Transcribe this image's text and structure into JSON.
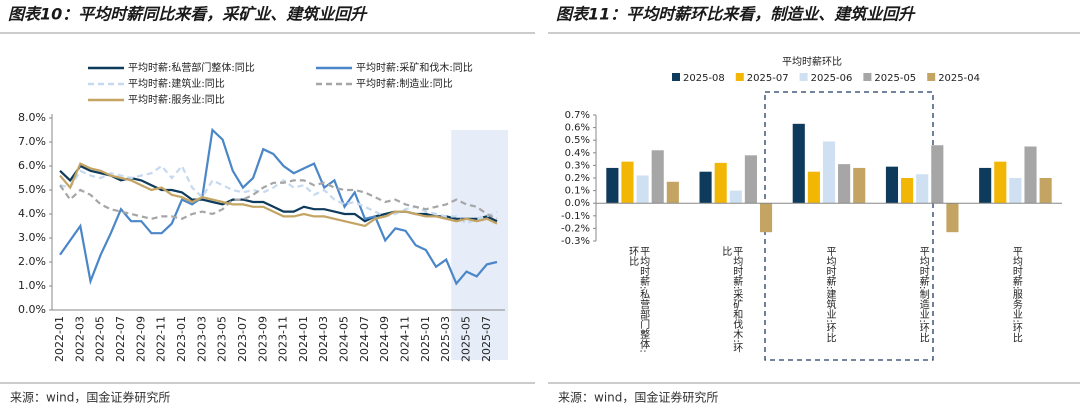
{
  "chart_data": [
    {
      "type": "line",
      "title": "图表10：平均时薪同比来看，采矿业、建筑业回升",
      "source": "来源：wind，国金证券研究所",
      "categories": [
        "2022-01",
        null,
        "2022-03",
        null,
        "2022-05",
        null,
        "2022-07",
        null,
        "2022-09",
        null,
        "2022-11",
        null,
        "2023-01",
        null,
        "2023-03",
        null,
        "2023-05",
        null,
        "2023-07",
        null,
        "2023-09",
        null,
        "2023-11",
        null,
        "2024-01",
        null,
        "2024-03",
        null,
        "2024-05",
        null,
        "2024-07",
        null,
        "2024-09",
        null,
        "2024-11",
        null,
        "2025-01",
        null,
        "2025-03",
        null,
        "2025-05",
        null,
        "2025-07",
        null
      ],
      "ylim": [
        0,
        8
      ],
      "yticks": [
        {
          "value": 0,
          "label": "0.0%"
        },
        {
          "value": 1,
          "label": "1.0%"
        },
        {
          "value": 2,
          "label": "2.0%"
        },
        {
          "value": 3,
          "label": "3.0%"
        },
        {
          "value": 4,
          "label": "4.0%"
        },
        {
          "value": 5,
          "label": "5.0%"
        },
        {
          "value": 6,
          "label": "6.0%"
        },
        {
          "value": 7,
          "label": "7.0%"
        },
        {
          "value": 8,
          "label": "8.0%"
        }
      ],
      "series": [
        {
          "name": "平均时薪:私营部门整体:同比",
          "color": "#0e3a5c",
          "values": [
            5.8,
            5.4,
            6.0,
            5.8,
            5.7,
            5.6,
            5.4,
            5.5,
            5.4,
            5.2,
            5.0,
            5.0,
            4.9,
            4.6,
            4.6,
            4.5,
            4.4,
            4.6,
            4.6,
            4.5,
            4.5,
            4.3,
            4.1,
            4.1,
            4.3,
            4.2,
            4.2,
            4.1,
            4.0,
            4.0,
            3.7,
            3.9,
            4.0,
            4.1,
            4.1,
            4.0,
            4.0,
            3.9,
            3.9,
            3.8,
            3.8,
            3.8,
            3.9,
            3.7
          ]
        },
        {
          "name": "平均时薪:采矿和伐木:同比",
          "color": "#4a86c8",
          "values": [
            2.3,
            2.9,
            3.5,
            1.2,
            2.3,
            3.2,
            4.2,
            3.7,
            3.7,
            3.2,
            3.2,
            3.6,
            4.6,
            4.4,
            4.7,
            7.5,
            7.1,
            5.8,
            5.1,
            5.5,
            6.7,
            6.5,
            6.0,
            5.7,
            5.9,
            6.1,
            5.1,
            5.4,
            4.3,
            4.9,
            3.8,
            3.9,
            2.9,
            3.4,
            3.3,
            2.7,
            2.5,
            1.8,
            2.1,
            1.1,
            1.6,
            1.4,
            1.9,
            2.0
          ]
        },
        {
          "name": "平均时薪:建筑业:同比",
          "color": "#c6d9ef",
          "dashed": true,
          "values": [
            5.2,
            5.1,
            5.8,
            5.6,
            5.5,
            5.7,
            5.6,
            5.5,
            5.6,
            5.7,
            6.0,
            5.5,
            6.0,
            5.1,
            4.7,
            5.4,
            5.2,
            5.0,
            4.9,
            5.0,
            4.9,
            5.1,
            5.4,
            5.1,
            5.2,
            4.8,
            5.0,
            4.6,
            4.4,
            4.5,
            4.3,
            4.1,
            3.9,
            4.0,
            4.2,
            4.3,
            4.1,
            4.0,
            3.9,
            3.9,
            3.6,
            3.8,
            3.9,
            4.1
          ]
        },
        {
          "name": "平均时薪:制造业:同比",
          "color": "#a6a6a6",
          "dashed": true,
          "values": [
            5.2,
            4.6,
            5.0,
            4.8,
            4.4,
            4.2,
            4.1,
            4.0,
            3.9,
            3.8,
            3.9,
            3.9,
            3.8,
            4.0,
            4.1,
            4.0,
            4.2,
            4.6,
            4.6,
            4.8,
            5.1,
            5.3,
            5.3,
            5.4,
            5.4,
            5.2,
            5.3,
            5.1,
            5.0,
            5.0,
            4.9,
            4.7,
            4.5,
            4.6,
            4.4,
            4.3,
            4.2,
            4.3,
            4.4,
            4.6,
            4.4,
            4.3,
            4.0,
            3.8
          ]
        },
        {
          "name": "平均时薪:服务业:同比",
          "color": "#c4a463",
          "values": [
            5.6,
            5.1,
            6.1,
            5.9,
            5.8,
            5.6,
            5.5,
            5.4,
            5.2,
            5.0,
            5.1,
            4.8,
            4.7,
            4.5,
            4.7,
            4.6,
            4.5,
            4.4,
            4.4,
            4.3,
            4.3,
            4.1,
            3.9,
            3.9,
            4.0,
            3.9,
            3.9,
            3.8,
            3.7,
            3.6,
            3.5,
            3.8,
            3.9,
            4.1,
            4.1,
            4.0,
            3.9,
            3.9,
            3.8,
            3.7,
            3.8,
            3.7,
            3.8,
            3.6
          ]
        }
      ]
    },
    {
      "type": "bar",
      "title": "图表11：平均时薪环比来看，制造业、建筑业回升",
      "subtitle": "平均时薪环比",
      "source": "来源：wind，国金证券研究所",
      "categories": [
        "平均时薪:私营部门整体:环比",
        "平均时薪:采矿和伐木:环比",
        "平均时薪:建筑业:环比",
        "平均时薪:制造业:环比",
        "平均时薪:服务业:环比"
      ],
      "ylim": [
        -0.3,
        0.7
      ],
      "yticks": [
        {
          "value": 0.7,
          "label": "0.7%"
        },
        {
          "value": 0.6,
          "label": "0.6%"
        },
        {
          "value": 0.5,
          "label": "0.5%"
        },
        {
          "value": 0.4,
          "label": "0.4%"
        },
        {
          "value": 0.3,
          "label": "0.3%"
        },
        {
          "value": 0.2,
          "label": "0.2%"
        },
        {
          "value": 0.1,
          "label": "0.1%"
        },
        {
          "value": 0,
          "label": "0.0%"
        },
        {
          "value": -0.1,
          "label": "-0.1%"
        },
        {
          "value": -0.2,
          "label": "-0.2%"
        },
        {
          "value": -0.3,
          "label": "-0.3%"
        }
      ],
      "series": [
        {
          "name": "2025-08",
          "color": "#0e3a5c",
          "values": [
            0.28,
            0.25,
            0.63,
            0.29,
            0.28
          ]
        },
        {
          "name": "2025-07",
          "color": "#f2b705",
          "values": [
            0.33,
            0.32,
            0.25,
            0.2,
            0.33
          ]
        },
        {
          "name": "2025-06",
          "color": "#cfe0f3",
          "values": [
            0.22,
            0.1,
            0.49,
            0.23,
            0.2
          ]
        },
        {
          "name": "2025-05",
          "color": "#a6a6a6",
          "values": [
            0.42,
            0.38,
            0.31,
            0.46,
            0.45
          ]
        },
        {
          "name": "2025-04",
          "color": "#c4a463",
          "values": [
            0.17,
            -0.23,
            0.28,
            -0.23,
            0.2
          ]
        }
      ]
    }
  ]
}
